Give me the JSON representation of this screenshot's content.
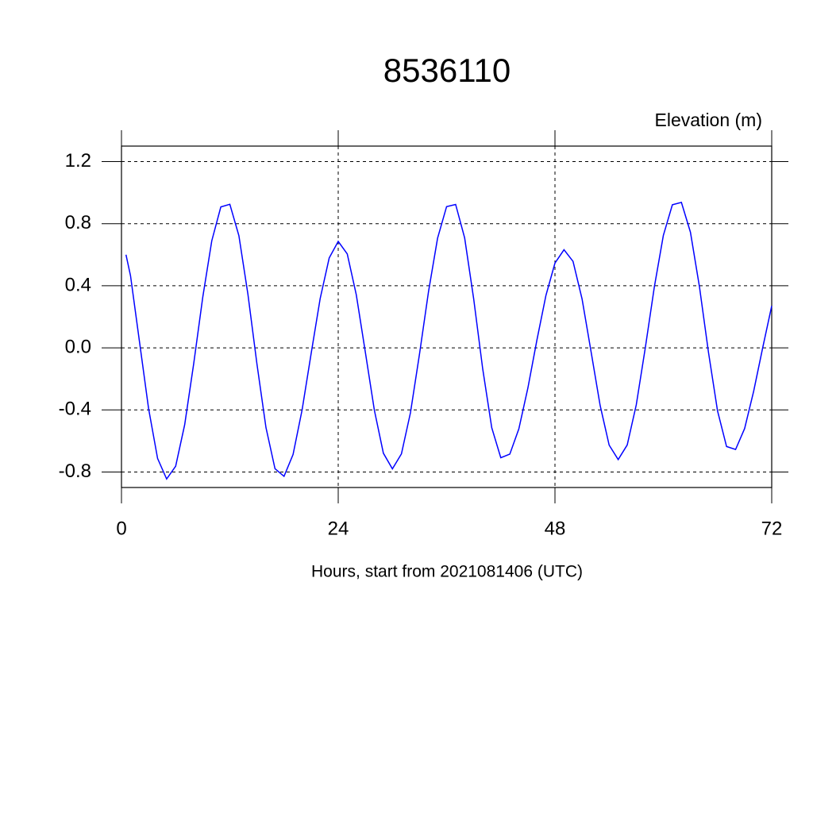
{
  "chart_data": {
    "type": "line",
    "title": "8536110",
    "subtitle": "Elevation (m)",
    "x_label": "Hours, start from 2021081406 (UTC)",
    "x": [
      0.5,
      1,
      2,
      3,
      4,
      5,
      6,
      7,
      8,
      9,
      10,
      11,
      12,
      13,
      14,
      15,
      16,
      17,
      18,
      19,
      20,
      21,
      22,
      23,
      24,
      25,
      26,
      27,
      28,
      29,
      30,
      31,
      32,
      33,
      34,
      35,
      36,
      37,
      38,
      39,
      40,
      41,
      42,
      43,
      44,
      45,
      46,
      47,
      48,
      49,
      50,
      51,
      52,
      53,
      54,
      55,
      56,
      57,
      58,
      59,
      60,
      61,
      62,
      63,
      64,
      65,
      66,
      67,
      68,
      69,
      70,
      71,
      72
    ],
    "series": [
      {
        "color": "#0000ff",
        "values": [
          0.6,
          0.465,
          0.037,
          -0.391,
          -0.713,
          -0.845,
          -0.763,
          -0.495,
          -0.101,
          0.326,
          0.69,
          0.908,
          0.925,
          0.723,
          0.346,
          -0.104,
          -0.514,
          -0.779,
          -0.828,
          -0.687,
          -0.4,
          -0.037,
          0.317,
          0.579,
          0.686,
          0.605,
          0.342,
          -0.027,
          -0.401,
          -0.679,
          -0.78,
          -0.683,
          -0.418,
          -0.04,
          0.363,
          0.706,
          0.91,
          0.924,
          0.708,
          0.315,
          -0.136,
          -0.515,
          -0.708,
          -0.685,
          -0.522,
          -0.259,
          0.05,
          0.338,
          0.546,
          0.632,
          0.557,
          0.315,
          -0.026,
          -0.371,
          -0.627,
          -0.72,
          -0.626,
          -0.368,
          -0.001,
          0.391,
          0.724,
          0.922,
          0.937,
          0.745,
          0.393,
          -0.03,
          -0.406,
          -0.636,
          -0.655,
          -0.52,
          -0.28,
          0.0,
          0.27
        ]
      }
    ],
    "xlim": [
      0,
      72
    ],
    "xticks": [
      0,
      24,
      48,
      72
    ],
    "ylim": [
      -0.9,
      1.3
    ],
    "yticks": [
      -0.8,
      -0.4,
      {
        "value": 0,
        "label": "0.0"
      },
      0.4,
      0.8,
      1.2
    ],
    "grid": true
  }
}
